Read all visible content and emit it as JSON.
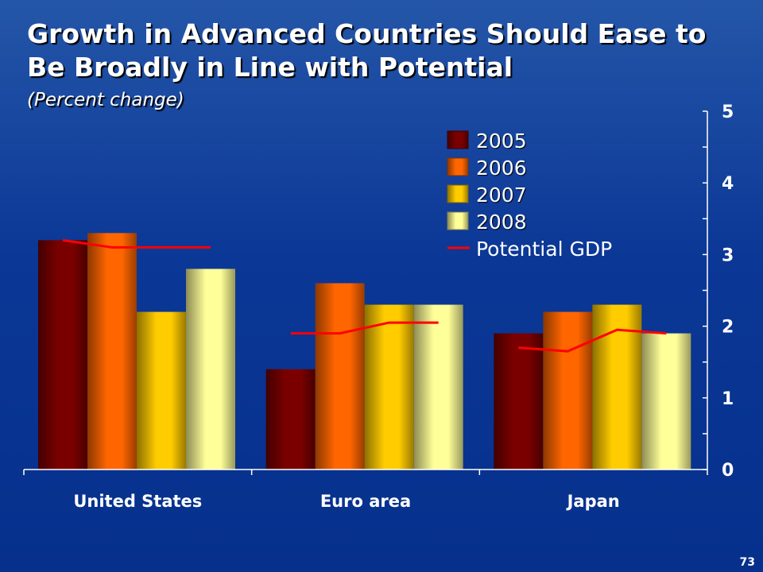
{
  "slide": {
    "title_line1": "Growth in Advanced Countries Should Ease to",
    "title_line2": "Be Broadly in Line with Potential",
    "subtitle": "(Percent change)",
    "page_number": "73"
  },
  "chart_data": {
    "type": "bar",
    "title": "Growth in Advanced Countries Should Ease to Be Broadly in Line with Potential",
    "subtitle": "(Percent change)",
    "categories": [
      "United States",
      "Euro area",
      "Japan"
    ],
    "series": [
      {
        "name": "2005",
        "values": [
          3.2,
          1.4,
          1.9
        ],
        "color": "#7a0000"
      },
      {
        "name": "2006",
        "values": [
          3.3,
          2.6,
          2.2
        ],
        "color": "#ff6600"
      },
      {
        "name": "2007",
        "values": [
          2.2,
          2.3,
          2.3
        ],
        "color": "#ffcc00"
      },
      {
        "name": "2008",
        "values": [
          2.8,
          2.3,
          1.9
        ],
        "color": "#ffff99"
      }
    ],
    "line_series": {
      "name": "Potential GDP",
      "color": "#ff0000",
      "values": [
        [
          3.2,
          3.1,
          3.1,
          3.1
        ],
        [
          1.9,
          1.9,
          2.05,
          2.05
        ],
        [
          1.7,
          1.65,
          1.95,
          1.9
        ]
      ]
    },
    "y_axis": {
      "position": "right",
      "ylim": [
        0,
        5
      ],
      "ticks": [
        "0",
        "1",
        "2",
        "3",
        "4",
        "5"
      ]
    },
    "grid": false,
    "legend_position": "top-right"
  }
}
